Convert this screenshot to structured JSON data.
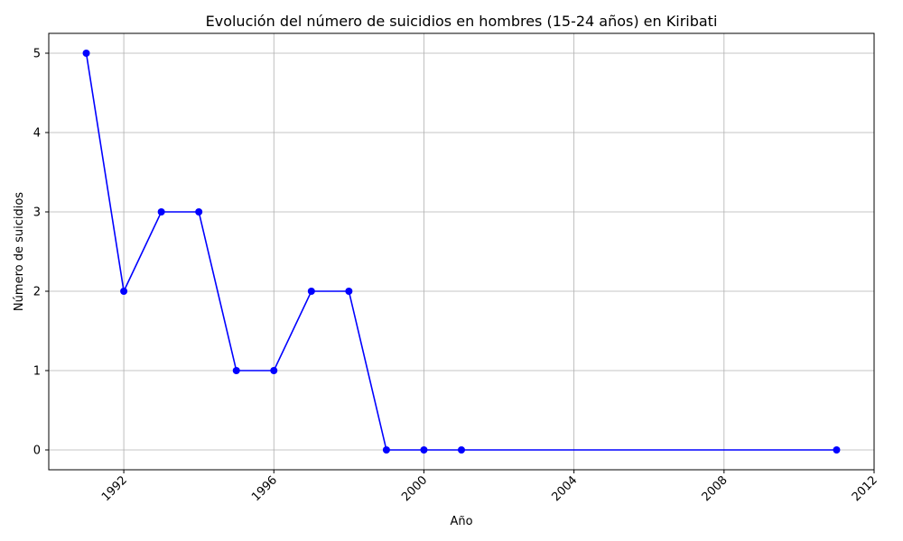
{
  "chart_data": {
    "type": "line",
    "title": "Evolución del número de suicidios en hombres (15-24 años) en Kiribati",
    "xlabel": "Año",
    "ylabel": "Número de suicidios",
    "x": [
      1991,
      1992,
      1993,
      1994,
      1995,
      1996,
      1997,
      1998,
      1999,
      2000,
      2001,
      2011
    ],
    "series": [
      {
        "values": [
          5,
          2,
          3,
          3,
          1,
          1,
          2,
          2,
          0,
          0,
          0,
          0
        ]
      }
    ],
    "xlim": [
      1990,
      2012
    ],
    "ylim": [
      -0.25,
      5.25
    ],
    "xticks": [
      1992,
      1996,
      2000,
      2004,
      2008,
      2012
    ],
    "yticks": [
      0,
      1,
      2,
      3,
      4,
      5
    ],
    "grid": true,
    "colors": {
      "line": "#0000ff",
      "marker": "#0000ff",
      "grid": "#b0b0b0",
      "axis": "#000000"
    }
  }
}
